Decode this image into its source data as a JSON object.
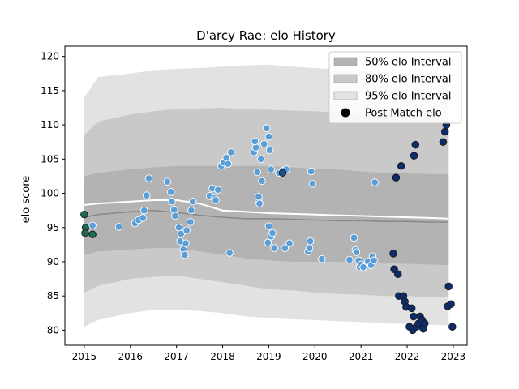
{
  "chart_data": {
    "type": "scatter",
    "title": "D'arcy Rae: elo History",
    "xlabel": "",
    "ylabel": "elo score",
    "xlim": [
      2014.58,
      2023.3
    ],
    "ylim": [
      77.8,
      121.5
    ],
    "x_ticks": [
      2015,
      2016,
      2017,
      2018,
      2019,
      2020,
      2021,
      2022,
      2023
    ],
    "x_tick_labels": [
      "2015",
      "2016",
      "2017",
      "2018",
      "2019",
      "2020",
      "2021",
      "2022",
      "2023"
    ],
    "y_ticks": [
      80,
      85,
      90,
      95,
      100,
      105,
      110,
      115,
      120
    ],
    "y_tick_labels": [
      "80",
      "85",
      "90",
      "95",
      "100",
      "105",
      "110",
      "115",
      "120"
    ],
    "grid": false,
    "legend": {
      "placement": "top-right",
      "entries": [
        {
          "label": "50% elo Interval",
          "color": "#b3b3b3",
          "kind": "patch"
        },
        {
          "label": "80% elo Interval",
          "color": "#c9c9c9",
          "kind": "patch"
        },
        {
          "label": "95% elo Interval",
          "color": "#e2e2e2",
          "kind": "patch"
        },
        {
          "label": "Post Match elo",
          "color": "#000000",
          "kind": "marker"
        }
      ]
    },
    "bands": {
      "x": [
        2015.0,
        2015.3,
        2016.0,
        2016.5,
        2017.0,
        2017.5,
        2018.0,
        2018.5,
        2019.0,
        2019.5,
        2020.0,
        2020.5,
        2021.0,
        2021.5,
        2022.0,
        2022.5,
        2022.9
      ],
      "p95_upper": [
        114.0,
        117.0,
        117.5,
        118.0,
        118.2,
        118.3,
        118.5,
        118.7,
        118.8,
        118.5,
        118.3,
        118.1,
        118.0,
        117.8,
        117.6,
        117.5,
        117.4
      ],
      "p95_lower": [
        80.5,
        81.5,
        82.5,
        83.0,
        83.0,
        82.8,
        82.5,
        82.0,
        81.8,
        81.6,
        81.5,
        81.3,
        81.2,
        81.0,
        80.9,
        80.8,
        80.7
      ],
      "p80_upper": [
        108.5,
        110.5,
        111.5,
        112.0,
        112.3,
        112.4,
        112.5,
        112.3,
        112.2,
        112.1,
        112.0,
        111.8,
        111.6,
        111.5,
        111.3,
        111.2,
        111.1
      ],
      "p80_lower": [
        85.5,
        86.5,
        87.5,
        87.8,
        88.0,
        87.5,
        87.0,
        86.5,
        86.0,
        85.8,
        85.5,
        85.3,
        85.2,
        85.0,
        85.0,
        84.8,
        84.8
      ],
      "p50_upper": [
        102.5,
        103.0,
        103.5,
        103.8,
        104.0,
        104.0,
        104.0,
        104.0,
        104.0,
        103.8,
        103.6,
        103.5,
        103.2,
        103.0,
        102.9,
        102.8,
        102.8
      ],
      "p50_lower": [
        91.0,
        91.5,
        91.8,
        92.0,
        92.0,
        91.5,
        91.0,
        90.5,
        90.2,
        90.0,
        90.0,
        90.0,
        89.9,
        89.8,
        89.7,
        89.6,
        89.5
      ],
      "median_upper": [
        98.3,
        98.5,
        98.8,
        99.0,
        99.0,
        98.5,
        97.5,
        97.3,
        97.1,
        97.0,
        96.9,
        96.8,
        96.7,
        96.6,
        96.5,
        96.4,
        96.3
      ],
      "median_lower": [
        96.5,
        96.9,
        97.3,
        97.5,
        97.2,
        96.8,
        96.5,
        96.3,
        96.3,
        96.2,
        96.1,
        96.0,
        96.0,
        95.9,
        95.9,
        95.8,
        95.8
      ]
    },
    "series": [
      {
        "points": [
          [
            2015.0,
            96.9
          ],
          [
            2015.03,
            95.0
          ],
          [
            2015.02,
            94.2
          ],
          [
            2015.18,
            94.0
          ]
        ],
        "color": "#1a6b50"
      },
      {
        "points": [
          [
            2015.18,
            95.3
          ],
          [
            2015.75,
            95.1
          ],
          [
            2016.1,
            95.6
          ],
          [
            2016.18,
            96.1
          ],
          [
            2016.27,
            96.4
          ],
          [
            2016.3,
            97.5
          ],
          [
            2016.35,
            99.7
          ],
          [
            2016.4,
            102.2
          ],
          [
            2016.8,
            101.7
          ],
          [
            2016.88,
            100.2
          ],
          [
            2016.9,
            98.8
          ],
          [
            2016.95,
            97.6
          ],
          [
            2016.97,
            96.7
          ],
          [
            2017.05,
            95.0
          ],
          [
            2017.1,
            94.1
          ],
          [
            2017.08,
            93.0
          ],
          [
            2017.15,
            91.8
          ],
          [
            2017.18,
            91.0
          ],
          [
            2017.2,
            92.7
          ],
          [
            2017.22,
            94.6
          ],
          [
            2017.3,
            95.8
          ],
          [
            2017.32,
            97.5
          ],
          [
            2017.35,
            98.8
          ],
          [
            2017.72,
            99.6
          ],
          [
            2017.78,
            100.7
          ],
          [
            2017.82,
            99.3
          ],
          [
            2017.85,
            99.0
          ],
          [
            2017.9,
            100.5
          ],
          [
            2017.97,
            104.0
          ],
          [
            2018.02,
            104.5
          ],
          [
            2018.08,
            105.2
          ],
          [
            2018.12,
            104.3
          ],
          [
            2018.18,
            106.0
          ],
          [
            2018.15,
            91.3
          ],
          [
            2018.68,
            106.0
          ],
          [
            2018.72,
            106.7
          ],
          [
            2018.7,
            107.6
          ],
          [
            2018.75,
            103.1
          ],
          [
            2018.78,
            99.1
          ],
          [
            2018.8,
            98.5
          ],
          [
            2018.78,
            99.5
          ],
          [
            2018.85,
            101.8
          ],
          [
            2018.83,
            105.0
          ],
          [
            2018.9,
            107.2
          ],
          [
            2018.95,
            109.5
          ],
          [
            2019.0,
            108.3
          ],
          [
            2019.02,
            106.3
          ],
          [
            2019.05,
            103.5
          ],
          [
            2019.0,
            95.2
          ],
          [
            2018.98,
            92.8
          ],
          [
            2019.05,
            93.7
          ],
          [
            2019.08,
            94.2
          ],
          [
            2019.12,
            92.0
          ],
          [
            2019.22,
            103.0
          ],
          [
            2019.3,
            103.3
          ],
          [
            2019.38,
            103.5
          ],
          [
            2019.35,
            92.0
          ],
          [
            2019.45,
            92.7
          ],
          [
            2019.85,
            91.5
          ],
          [
            2019.88,
            92.0
          ],
          [
            2019.9,
            93.0
          ],
          [
            2019.92,
            103.2
          ],
          [
            2019.95,
            101.4
          ],
          [
            2020.15,
            90.4
          ],
          [
            2020.75,
            90.3
          ],
          [
            2020.85,
            93.5
          ],
          [
            2020.88,
            91.7
          ],
          [
            2020.9,
            91.4
          ],
          [
            2020.95,
            90.2
          ],
          [
            2020.97,
            89.2
          ],
          [
            2021.0,
            89.6
          ],
          [
            2021.05,
            89.2
          ],
          [
            2021.15,
            90.0
          ],
          [
            2021.22,
            89.5
          ],
          [
            2021.25,
            90.8
          ],
          [
            2021.28,
            90.2
          ],
          [
            2021.3,
            101.6
          ]
        ],
        "color": "#5b9fd8"
      },
      {
        "points": [
          [
            2019.3,
            103.0
          ]
        ],
        "color": "#1f4e8a"
      },
      {
        "points": [
          [
            2021.7,
            91.2
          ],
          [
            2021.72,
            88.9
          ],
          [
            2021.76,
            102.3
          ],
          [
            2021.8,
            88.2
          ],
          [
            2021.82,
            85.0
          ],
          [
            2021.87,
            104.0
          ],
          [
            2021.92,
            85.0
          ],
          [
            2021.95,
            84.2
          ],
          [
            2021.98,
            83.4
          ],
          [
            2022.05,
            80.5
          ],
          [
            2022.1,
            83.2
          ],
          [
            2022.12,
            80.0
          ],
          [
            2022.14,
            82.0
          ],
          [
            2022.15,
            105.5
          ],
          [
            2022.18,
            107.1
          ],
          [
            2022.2,
            80.5
          ],
          [
            2022.25,
            81.0
          ],
          [
            2022.28,
            82.0
          ],
          [
            2022.32,
            81.5
          ],
          [
            2022.35,
            80.2
          ],
          [
            2022.38,
            81.0
          ],
          [
            2022.78,
            107.5
          ],
          [
            2022.82,
            109.0
          ],
          [
            2022.85,
            110.0
          ],
          [
            2022.88,
            83.5
          ],
          [
            2022.9,
            86.4
          ],
          [
            2022.95,
            83.8
          ],
          [
            2022.98,
            80.5
          ]
        ],
        "color": "#0d2c6b"
      }
    ]
  }
}
